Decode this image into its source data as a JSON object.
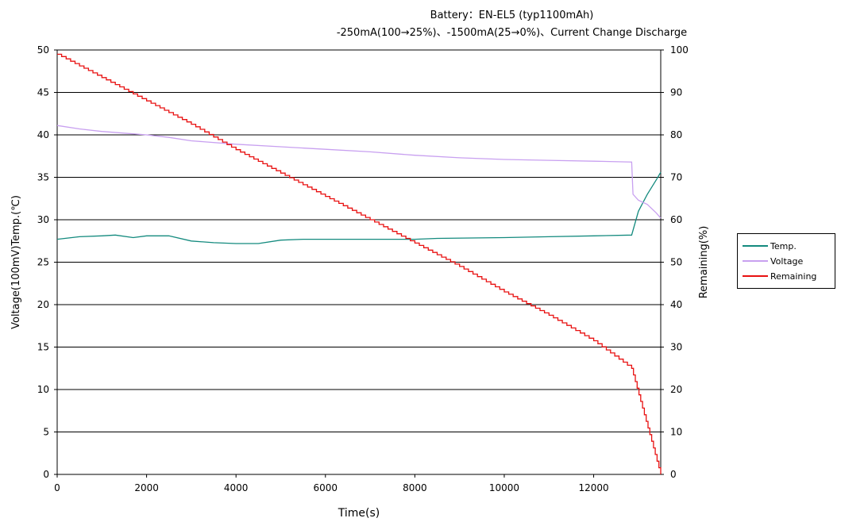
{
  "chart_data": {
    "type": "line",
    "title": "Battery：EN-EL5 (typ1100mAh)",
    "subtitle": "-250mA(100→25%)、-1500mA(25→0%)、Current Change Discharge",
    "xlabel": "Time(s)",
    "ylabel_left": "Voltage(100mV)Temp.(℃)",
    "ylabel_right": "Remaining(%)",
    "xlim": [
      0,
      13500
    ],
    "ylim_left": [
      0,
      50
    ],
    "ylim_right": [
      0,
      100
    ],
    "x_ticks": [
      "0",
      "2000",
      "4000",
      "6000",
      "8000",
      "10000",
      "12000"
    ],
    "y_ticks_left": [
      "0",
      "5",
      "10",
      "15",
      "20",
      "25",
      "30",
      "35",
      "40",
      "45",
      "50"
    ],
    "y_ticks_right": [
      "0",
      "10",
      "20",
      "30",
      "40",
      "50",
      "60",
      "70",
      "80",
      "90",
      "100"
    ],
    "grid": "horizontal",
    "legend_position": "right",
    "series": [
      {
        "name": "Temp.",
        "axis": "left",
        "color": "#138a7e",
        "points": [
          [
            0,
            27.7
          ],
          [
            500,
            28.0
          ],
          [
            1000,
            28.1
          ],
          [
            1300,
            28.2
          ],
          [
            1700,
            27.9
          ],
          [
            2000,
            28.1
          ],
          [
            2500,
            28.1
          ],
          [
            3000,
            27.5
          ],
          [
            3500,
            27.3
          ],
          [
            4000,
            27.2
          ],
          [
            4500,
            27.2
          ],
          [
            5000,
            27.6
          ],
          [
            5500,
            27.7
          ],
          [
            7000,
            27.7
          ],
          [
            8000,
            27.7
          ],
          [
            8500,
            27.8
          ],
          [
            10000,
            27.9
          ],
          [
            11000,
            28.0
          ],
          [
            12000,
            28.1
          ],
          [
            12850,
            28.2
          ],
          [
            13000,
            31.0
          ],
          [
            13200,
            33.0
          ],
          [
            13400,
            34.7
          ],
          [
            13500,
            35.6
          ]
        ]
      },
      {
        "name": "Voltage",
        "axis": "left",
        "color": "#c8a0f0",
        "points": [
          [
            0,
            41.1
          ],
          [
            500,
            40.7
          ],
          [
            1000,
            40.4
          ],
          [
            2000,
            40.0
          ],
          [
            2500,
            39.7
          ],
          [
            3000,
            39.3
          ],
          [
            4000,
            38.9
          ],
          [
            5000,
            38.6
          ],
          [
            6000,
            38.3
          ],
          [
            7000,
            38.0
          ],
          [
            8000,
            37.6
          ],
          [
            9000,
            37.3
          ],
          [
            10000,
            37.1
          ],
          [
            11000,
            37.0
          ],
          [
            12000,
            36.9
          ],
          [
            12850,
            36.8
          ],
          [
            12880,
            33.0
          ],
          [
            13000,
            32.3
          ],
          [
            13200,
            31.8
          ],
          [
            13400,
            30.8
          ],
          [
            13500,
            30.2
          ]
        ]
      },
      {
        "name": "Remaining",
        "axis": "right",
        "color": "#e81010",
        "step": true,
        "points": [
          [
            0,
            99
          ],
          [
            1000,
            93.5
          ],
          [
            2000,
            88
          ],
          [
            3000,
            82.5
          ],
          [
            4000,
            76.5
          ],
          [
            5000,
            71
          ],
          [
            6000,
            65.5
          ],
          [
            7000,
            60
          ],
          [
            8000,
            54.5
          ],
          [
            9000,
            49
          ],
          [
            10000,
            43
          ],
          [
            11000,
            37.5
          ],
          [
            12000,
            31.5
          ],
          [
            12850,
            25
          ],
          [
            13500,
            0
          ]
        ]
      }
    ]
  }
}
